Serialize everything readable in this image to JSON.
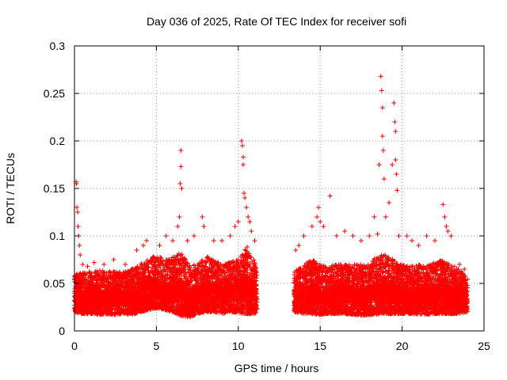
{
  "chart_data": {
    "type": "scatter",
    "title": "Day 036 of 2025, Rate Of TEC Index for receiver sofi",
    "xlabel": "GPS time / hours",
    "ylabel": "ROTI / TECUs",
    "xlim": [
      0,
      25
    ],
    "ylim": [
      0,
      0.3
    ],
    "xticks": [
      0,
      5,
      10,
      15,
      20,
      25
    ],
    "yticks": [
      0,
      0.05,
      0.1,
      0.15,
      0.2,
      0.25,
      0.3
    ],
    "xtick_labels": [
      "0",
      "5",
      "10",
      "15",
      "20",
      "25"
    ],
    "ytick_labels": [
      "0",
      "0.05",
      "0.1",
      "0.15",
      "0.2",
      "0.25",
      "0.3"
    ],
    "grid": true,
    "marker": "+",
    "marker_color": "#ff0000",
    "data_gap_hours": [
      11.2,
      13.4
    ],
    "series": [
      {
        "name": "ROTI",
        "x": [
          0.1,
          0.12,
          0.15,
          0.2,
          0.22,
          0.25,
          0.3,
          0.35,
          0.5,
          0.8,
          1.2,
          1.8,
          2.4,
          3.1,
          3.8,
          4.2,
          4.4,
          5.2,
          5.6,
          6.0,
          6.3,
          6.4,
          6.45,
          6.5,
          6.5,
          6.55,
          6.9,
          7.3,
          7.8,
          7.9,
          8.5,
          9.0,
          9.5,
          9.8,
          10.0,
          10.2,
          10.25,
          10.3,
          10.3,
          10.35,
          10.4,
          10.5,
          10.6,
          10.7,
          10.8,
          11.0,
          13.5,
          13.7,
          14.0,
          14.5,
          14.8,
          14.9,
          15.0,
          15.2,
          15.6,
          16.0,
          16.5,
          17.0,
          17.5,
          18.0,
          18.3,
          18.5,
          18.6,
          18.7,
          18.75,
          18.8,
          18.8,
          18.85,
          18.9,
          19.0,
          19.2,
          19.4,
          19.5,
          19.55,
          19.6,
          19.6,
          19.65,
          19.7,
          19.8,
          20.3,
          20.6,
          21.0,
          21.5,
          22.0,
          22.5,
          22.6,
          22.7,
          22.8,
          23.0,
          23.5,
          23.8
        ],
        "y": [
          0.157,
          0.155,
          0.13,
          0.125,
          0.11,
          0.1,
          0.09,
          0.08,
          0.07,
          0.068,
          0.072,
          0.07,
          0.075,
          0.07,
          0.085,
          0.09,
          0.095,
          0.09,
          0.1,
          0.095,
          0.11,
          0.12,
          0.155,
          0.19,
          0.173,
          0.15,
          0.095,
          0.1,
          0.12,
          0.11,
          0.095,
          0.095,
          0.1,
          0.11,
          0.115,
          0.2,
          0.195,
          0.183,
          0.175,
          0.145,
          0.14,
          0.13,
          0.12,
          0.115,
          0.105,
          0.095,
          0.085,
          0.09,
          0.1,
          0.11,
          0.12,
          0.13,
          0.115,
          0.11,
          0.142,
          0.1,
          0.105,
          0.1,
          0.095,
          0.1,
          0.12,
          0.102,
          0.175,
          0.268,
          0.253,
          0.235,
          0.205,
          0.19,
          0.16,
          0.12,
          0.135,
          0.175,
          0.24,
          0.22,
          0.21,
          0.18,
          0.165,
          0.148,
          0.1,
          0.1,
          0.095,
          0.09,
          0.1,
          0.095,
          0.133,
          0.12,
          0.11,
          0.105,
          0.1,
          0.07,
          0.065
        ]
      }
    ],
    "band_envelope": {
      "x": [
        0.0,
        0.5,
        1.0,
        1.5,
        2.0,
        2.5,
        3.0,
        3.5,
        4.0,
        4.5,
        5.0,
        5.5,
        6.0,
        6.5,
        7.0,
        7.5,
        8.0,
        8.5,
        9.0,
        9.5,
        10.0,
        10.5,
        11.0,
        11.15,
        13.4,
        13.5,
        14.0,
        14.5,
        15.0,
        15.5,
        16.0,
        16.5,
        17.0,
        17.5,
        18.0,
        18.5,
        19.0,
        19.5,
        20.0,
        20.5,
        21.0,
        21.5,
        22.0,
        22.5,
        23.0,
        23.5,
        24.0
      ],
      "low": [
        0.02,
        0.018,
        0.018,
        0.017,
        0.018,
        0.017,
        0.018,
        0.017,
        0.02,
        0.022,
        0.024,
        0.022,
        0.02,
        0.016,
        0.014,
        0.018,
        0.02,
        0.02,
        0.018,
        0.02,
        0.019,
        0.018,
        0.018,
        0.02,
        0.02,
        0.02,
        0.018,
        0.018,
        0.017,
        0.018,
        0.018,
        0.018,
        0.017,
        0.016,
        0.017,
        0.017,
        0.018,
        0.018,
        0.018,
        0.018,
        0.017,
        0.017,
        0.018,
        0.018,
        0.018,
        0.018,
        0.02
      ],
      "high": [
        0.06,
        0.062,
        0.063,
        0.064,
        0.063,
        0.062,
        0.062,
        0.065,
        0.07,
        0.075,
        0.08,
        0.075,
        0.078,
        0.085,
        0.07,
        0.07,
        0.08,
        0.075,
        0.07,
        0.072,
        0.075,
        0.09,
        0.075,
        0.06,
        0.06,
        0.065,
        0.07,
        0.075,
        0.07,
        0.068,
        0.07,
        0.07,
        0.07,
        0.07,
        0.07,
        0.08,
        0.08,
        0.075,
        0.07,
        0.068,
        0.07,
        0.068,
        0.072,
        0.075,
        0.07,
        0.065,
        0.055
      ]
    }
  }
}
